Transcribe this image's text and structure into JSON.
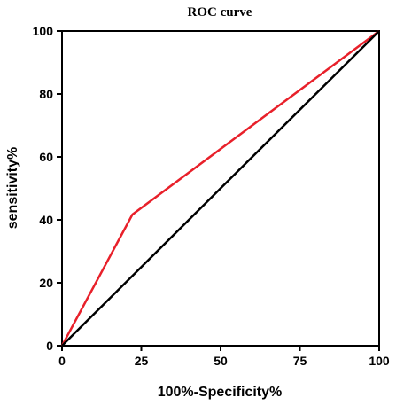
{
  "chart_data": {
    "type": "line",
    "title": "ROC curve",
    "xlabel": "100%-Specificity%",
    "ylabel": "sensitivity%",
    "xlim": [
      0,
      100
    ],
    "ylim": [
      0,
      100
    ],
    "xticks": [
      0,
      25,
      50,
      75,
      100
    ],
    "yticks": [
      0,
      20,
      40,
      60,
      80,
      100
    ],
    "grid": false,
    "series": [
      {
        "color": "#e8202a",
        "x": [
          0,
          22.2,
          100
        ],
        "y": [
          0,
          41.7,
          100
        ]
      },
      {
        "color": "#000000",
        "x": [
          0,
          100
        ],
        "y": [
          0,
          100
        ]
      }
    ]
  }
}
